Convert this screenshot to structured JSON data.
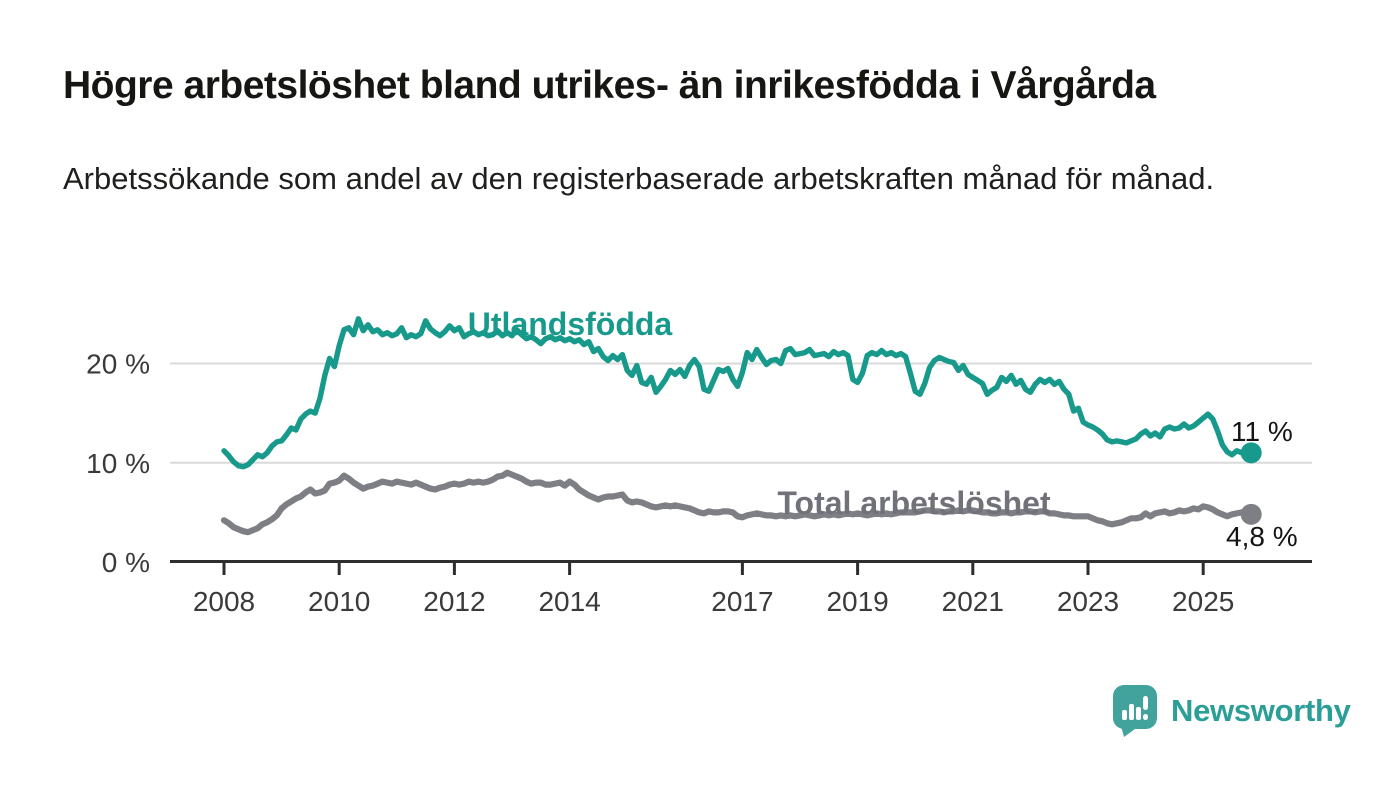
{
  "title": "Högre arbetslöshet bland utrikes- än inrikesfödda i Vårgårda",
  "subtitle": "Arbetssökande som andel av den registerbaserade arbetskraften månad för månad.",
  "branding": {
    "logo_text": "Newsworthy",
    "logo_color": "#41a39c",
    "logo_text_color": "#2b9e97"
  },
  "colors": {
    "grid": "#dadada",
    "axis": "#2e2e2e",
    "tick_label": "#3a3a3a",
    "annotation": "#141414",
    "background": "#ffffff"
  },
  "chart_data": {
    "type": "line",
    "title": "",
    "xlabel": "",
    "ylabel": "",
    "grid": "horizontal",
    "x_unit": "year (monthly data)",
    "x_start": 2008.0,
    "x_step_years": 0.083333,
    "xlim": [
      2008,
      2026.9
    ],
    "ylim": [
      0,
      26
    ],
    "x_axis": {
      "ticks": [
        2008,
        2010,
        2012,
        2014,
        2017,
        2019,
        2021,
        2023,
        2025
      ],
      "labels": [
        "2008",
        "2010",
        "2012",
        "2014",
        "2017",
        "2019",
        "2021",
        "2023",
        "2025"
      ]
    },
    "y_axis": {
      "ticks": [
        0,
        10,
        20
      ],
      "labels": [
        "0 %",
        "10 %",
        "20 %"
      ]
    },
    "series": [
      {
        "name": "Utlandsfödda",
        "color": "#17998b",
        "label_color": "#17998b",
        "end_label": "11 %",
        "end_value": 11.0,
        "values": [
          11.2,
          10.7,
          10.1,
          9.7,
          9.6,
          9.8,
          10.3,
          10.8,
          10.6,
          11.0,
          11.7,
          12.1,
          12.2,
          12.8,
          13.5,
          13.3,
          14.4,
          14.9,
          15.2,
          15.0,
          16.5,
          18.8,
          20.5,
          19.7,
          21.8,
          23.4,
          23.6,
          22.9,
          24.5,
          23.3,
          23.9,
          23.2,
          23.4,
          22.9,
          23.1,
          22.8,
          23.0,
          23.6,
          22.6,
          22.9,
          22.7,
          23.0,
          24.3,
          23.5,
          23.1,
          22.8,
          23.2,
          23.8,
          23.3,
          23.6,
          22.7,
          23.0,
          23.2,
          22.9,
          23.1,
          22.8,
          22.9,
          23.3,
          22.8,
          23.1,
          22.8,
          23.4,
          22.9,
          22.5,
          22.7,
          22.4,
          22.0,
          22.5,
          22.7,
          22.4,
          22.6,
          22.3,
          22.5,
          22.2,
          22.4,
          21.9,
          22.2,
          21.2,
          21.5,
          20.7,
          20.3,
          20.8,
          20.4,
          20.9,
          19.3,
          18.8,
          19.8,
          18.1,
          17.9,
          18.6,
          17.1,
          17.7,
          18.4,
          19.3,
          18.9,
          19.4,
          18.7,
          19.8,
          20.4,
          19.7,
          17.4,
          17.2,
          18.3,
          19.4,
          19.2,
          19.5,
          18.4,
          17.7,
          19.1,
          21.1,
          20.4,
          21.4,
          20.6,
          19.9,
          20.3,
          20.4,
          20.0,
          21.3,
          21.5,
          20.9,
          21.0,
          21.1,
          21.4,
          20.8,
          20.9,
          21.0,
          20.7,
          21.2,
          20.9,
          21.1,
          20.8,
          18.4,
          18.1,
          19.0,
          20.8,
          21.1,
          20.9,
          21.3,
          20.9,
          21.1,
          20.8,
          21.0,
          20.7,
          19.0,
          17.2,
          16.9,
          18.0,
          19.6,
          20.3,
          20.6,
          20.4,
          20.2,
          20.1,
          19.3,
          19.8,
          18.9,
          18.6,
          18.3,
          18.0,
          16.9,
          17.3,
          17.6,
          18.6,
          18.2,
          18.8,
          17.9,
          18.3,
          17.4,
          17.1,
          17.9,
          18.4,
          18.1,
          18.4,
          17.9,
          18.2,
          17.4,
          16.9,
          15.2,
          15.5,
          14.1,
          13.8,
          13.6,
          13.3,
          12.9,
          12.3,
          12.1,
          12.2,
          12.1,
          12.0,
          12.2,
          12.4,
          12.9,
          13.2,
          12.7,
          13.0,
          12.6,
          13.4,
          13.6,
          13.4,
          13.5,
          13.9,
          13.5,
          13.7,
          14.1,
          14.5,
          14.9,
          14.4,
          13.2,
          11.8,
          11.1,
          10.8,
          11.2,
          11.0,
          10.8,
          11.0
        ]
      },
      {
        "name": "Total arbetslöshet",
        "color": "#7e7e85",
        "label_color": "#717179",
        "end_label": "4,8 %",
        "end_value": 4.8,
        "values": [
          4.2,
          3.9,
          3.5,
          3.3,
          3.1,
          3.0,
          3.2,
          3.4,
          3.8,
          4.0,
          4.3,
          4.7,
          5.4,
          5.8,
          6.1,
          6.4,
          6.6,
          7.0,
          7.3,
          6.9,
          7.0,
          7.2,
          7.9,
          8.0,
          8.2,
          8.7,
          8.4,
          8.0,
          7.7,
          7.4,
          7.6,
          7.7,
          7.9,
          8.1,
          8.0,
          7.9,
          8.1,
          8.0,
          7.9,
          7.8,
          8.0,
          7.8,
          7.6,
          7.4,
          7.3,
          7.5,
          7.6,
          7.8,
          7.9,
          7.8,
          7.9,
          8.1,
          8.0,
          8.1,
          8.0,
          8.1,
          8.3,
          8.6,
          8.7,
          9.0,
          8.8,
          8.6,
          8.4,
          8.1,
          7.9,
          8.0,
          8.0,
          7.8,
          7.8,
          7.9,
          8.0,
          7.7,
          8.1,
          7.8,
          7.3,
          7.0,
          6.7,
          6.5,
          6.3,
          6.5,
          6.6,
          6.6,
          6.7,
          6.8,
          6.2,
          6.0,
          6.1,
          6.0,
          5.8,
          5.6,
          5.5,
          5.6,
          5.7,
          5.6,
          5.7,
          5.6,
          5.5,
          5.4,
          5.2,
          5.0,
          4.9,
          5.1,
          5.0,
          5.0,
          5.1,
          5.1,
          5.0,
          4.6,
          4.5,
          4.7,
          4.8,
          4.9,
          4.8,
          4.7,
          4.7,
          4.6,
          4.7,
          4.6,
          4.7,
          4.6,
          4.7,
          4.8,
          4.7,
          4.6,
          4.7,
          4.8,
          4.7,
          4.8,
          4.7,
          4.8,
          4.9,
          4.8,
          4.9,
          4.8,
          4.7,
          4.8,
          4.9,
          4.8,
          4.9,
          4.8,
          4.9,
          5.0,
          5.0,
          5.0,
          5.0,
          5.1,
          5.2,
          5.2,
          5.1,
          5.1,
          5.0,
          5.1,
          5.1,
          5.2,
          5.1,
          5.2,
          5.2,
          5.1,
          5.0,
          5.0,
          4.9,
          4.9,
          5.0,
          5.0,
          4.9,
          5.0,
          5.0,
          5.1,
          5.1,
          5.0,
          5.1,
          5.1,
          4.9,
          4.9,
          4.8,
          4.7,
          4.7,
          4.6,
          4.6,
          4.6,
          4.6,
          4.4,
          4.2,
          4.1,
          3.9,
          3.8,
          3.9,
          4.0,
          4.2,
          4.4,
          4.4,
          4.5,
          4.9,
          4.6,
          4.9,
          5.0,
          5.1,
          4.9,
          5.0,
          5.2,
          5.1,
          5.2,
          5.4,
          5.3,
          5.6,
          5.5,
          5.3,
          5.0,
          4.8,
          4.6,
          4.8,
          4.9,
          5.0,
          4.9,
          4.8
        ]
      }
    ]
  }
}
